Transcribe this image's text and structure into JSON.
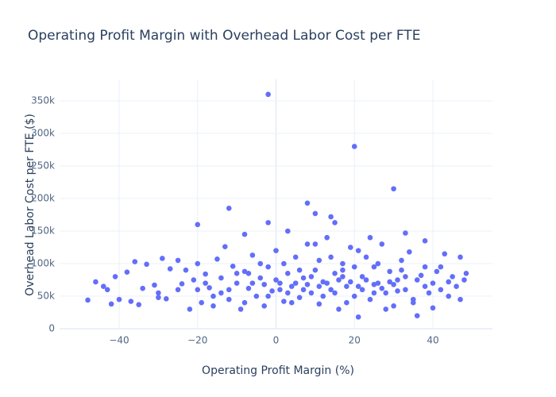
{
  "chart_data": {
    "type": "scatter",
    "title": "Operating Profit Margin with Overhead Labor Cost per FTE",
    "x_label": "Operating Profit Margin (%)",
    "y_label": "Overhead Labor Cost per FTE ($)",
    "color": "#636efa",
    "grid": true,
    "xlim": [
      -55.2,
      55.2
    ],
    "ylim": [
      -1200,
      383000
    ],
    "xticks": [
      {
        "value": -40,
        "label": "−40"
      },
      {
        "value": -20,
        "label": "−20"
      },
      0,
      20,
      40
    ],
    "yticks": [
      0,
      {
        "value": 50000,
        "label": "50k"
      },
      {
        "value": 100000,
        "label": "100k"
      },
      {
        "value": 150000,
        "label": "150k"
      },
      {
        "value": 200000,
        "label": "200k"
      },
      {
        "value": 250000,
        "label": "250k"
      },
      {
        "value": 300000,
        "label": "300k"
      },
      {
        "value": 350000,
        "label": "350k"
      }
    ],
    "x": [
      -2,
      20,
      30,
      8,
      -12,
      -20,
      10,
      14,
      -2,
      15,
      33,
      38,
      -8,
      3,
      -48,
      -46,
      -44,
      -42,
      -41,
      -38,
      -37,
      -36,
      -35,
      -33,
      -31,
      -30,
      -29,
      -28,
      -27,
      -25,
      -24,
      -23,
      -22,
      -21,
      -20,
      -19,
      -18,
      -17,
      -16,
      -15,
      -14,
      -13,
      -12,
      -11,
      -10,
      -9,
      -8,
      -7,
      -6,
      -5,
      -4,
      -3,
      -2,
      -1,
      0,
      1,
      2,
      3,
      4,
      5,
      6,
      7,
      8,
      9,
      10,
      11,
      12,
      13,
      14,
      15,
      16,
      17,
      18,
      19,
      20,
      21,
      22,
      23,
      24,
      25,
      26,
      27,
      28,
      29,
      30,
      31,
      32,
      33,
      34,
      35,
      36,
      37,
      38,
      39,
      40,
      41,
      42,
      43,
      44,
      45,
      46,
      47,
      48,
      48.5,
      47,
      44,
      42,
      40,
      38,
      35,
      32,
      28,
      26,
      24,
      22,
      20,
      18,
      16,
      14,
      12,
      10,
      8,
      6,
      4,
      2,
      0,
      -2,
      -4,
      -6,
      -8,
      -10,
      -12,
      -14,
      -16,
      -18,
      -20,
      -25,
      -30,
      -34,
      -40,
      -43,
      5,
      7,
      9,
      11,
      13,
      15,
      17,
      19,
      21,
      23,
      25,
      27,
      29,
      31,
      33,
      1,
      3,
      -3,
      -7,
      11,
      17,
      21,
      25,
      30,
      36
    ],
    "y": [
      360000,
      280000,
      215000,
      193000,
      185000,
      160000,
      177000,
      172000,
      163000,
      163000,
      147000,
      135000,
      145000,
      150000,
      44000,
      72000,
      65000,
      38000,
      80000,
      87000,
      42000,
      103000,
      37000,
      99000,
      67000,
      55000,
      108000,
      46000,
      92000,
      105000,
      69000,
      90000,
      30000,
      75000,
      100000,
      40000,
      84000,
      63000,
      35000,
      107000,
      55000,
      126000,
      45000,
      96000,
      70000,
      30000,
      88000,
      62000,
      113000,
      50000,
      78000,
      35000,
      95000,
      58000,
      120000,
      70000,
      42000,
      85000,
      65000,
      110000,
      48000,
      78000,
      130000,
      55000,
      90000,
      38000,
      72000,
      140000,
      60000,
      85000,
      30000,
      100000,
      65000,
      125000,
      50000,
      18000,
      80000,
      110000,
      45000,
      95000,
      70000,
      130000,
      55000,
      88000,
      35000,
      75000,
      105000,
      60000,
      118000,
      45000,
      20000,
      82000,
      95000,
      55000,
      70000,
      88000,
      60000,
      115000,
      50000,
      80000,
      65000,
      110000,
      75000,
      85000,
      45000,
      72000,
      95000,
      32000,
      65000,
      40000,
      90000,
      30000,
      100000,
      140000,
      60000,
      95000,
      40000,
      75000,
      110000,
      50000,
      130000,
      68000,
      90000,
      40000,
      100000,
      75000,
      50000,
      100000,
      70000,
      40000,
      85000,
      60000,
      78000,
      50000,
      70000,
      60000,
      60000,
      48000,
      62000,
      45000,
      60000,
      70000,
      60000,
      80000,
      65000,
      70000,
      55000,
      80000,
      72000,
      65000,
      75000,
      68000,
      62000,
      72000,
      58000,
      80000,
      60000,
      55000,
      68000,
      85000,
      105000,
      90000,
      120000,
      55000,
      68000,
      75000
    ]
  }
}
